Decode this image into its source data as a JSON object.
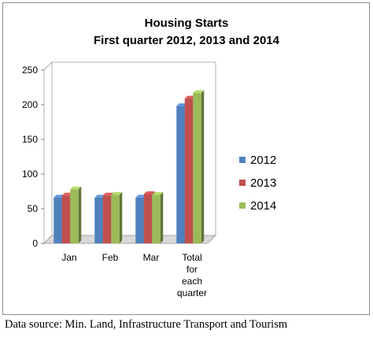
{
  "chart_data": {
    "type": "bar",
    "title": "Housing Starts",
    "subtitle": "First quarter 2012, 2013 and 2014",
    "categories": [
      [
        "Jan"
      ],
      [
        "Feb"
      ],
      [
        "Mar"
      ],
      [
        "Total",
        "for",
        "each",
        "quarter"
      ]
    ],
    "series": [
      {
        "name": "2012",
        "color": "#4f81bd",
        "values": [
          66,
          66,
          66,
          198
        ]
      },
      {
        "name": "2013",
        "color": "#c0504d",
        "values": [
          69,
          69,
          71,
          209
        ]
      },
      {
        "name": "2014",
        "color": "#9bbb59",
        "values": [
          78,
          70,
          70,
          217
        ]
      }
    ],
    "ylim": [
      0,
      250
    ],
    "yticks": [
      0,
      50,
      100,
      150,
      200,
      250
    ],
    "grid": false,
    "legend_position": "right",
    "three_d": true
  },
  "source_note": "Data source: Min. Land, Infrastructure Transport and Tourism"
}
